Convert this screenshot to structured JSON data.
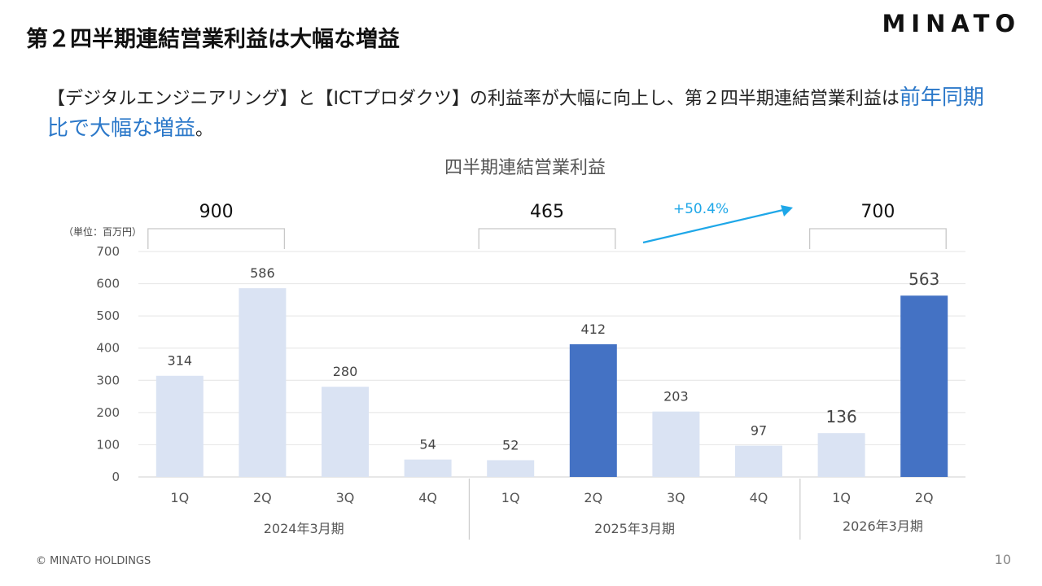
{
  "header": {
    "title": "第２四半期連結営業利益は大幅な増益",
    "logo": "MINATO"
  },
  "lead": {
    "text_before": "【デジタルエンジニアリング】と【ICTプロダクツ】の利益率が大幅に向上し、第２四半期連結営業利益は",
    "highlight": "前年同期比で大幅な増益",
    "text_after": "。"
  },
  "footer": {
    "copyright": "© MINATO HOLDINGS",
    "page_number": "10"
  },
  "colors": {
    "bar_light": "#dae3f3",
    "bar_highlight": "#4472c4",
    "growth_arrow": "#1ea7e8",
    "highlight_text": "#2b78c9"
  },
  "chart_data": {
    "type": "bar",
    "title": "四半期連結営業利益",
    "unit_label": "（単位：百万円）",
    "ylim": [
      0,
      700
    ],
    "yticks": [
      0,
      100,
      200,
      300,
      400,
      500,
      600,
      700
    ],
    "grid": true,
    "categories": [
      "1Q",
      "2Q",
      "3Q",
      "4Q",
      "1Q",
      "2Q",
      "3Q",
      "4Q",
      "1Q",
      "2Q"
    ],
    "values": [
      314,
      586,
      280,
      54,
      52,
      412,
      203,
      97,
      136,
      563
    ],
    "highlighted": [
      false,
      false,
      false,
      false,
      false,
      true,
      false,
      false,
      false,
      true
    ],
    "groups": [
      {
        "label": "2024年3月期",
        "start": 0,
        "end": 3
      },
      {
        "label": "2025年3月期",
        "start": 4,
        "end": 7
      },
      {
        "label": "2026年3月期",
        "start": 8,
        "end": 9
      }
    ],
    "half_year_totals": [
      {
        "value": "900",
        "start": 0,
        "end": 1
      },
      {
        "value": "465",
        "start": 4,
        "end": 5
      },
      {
        "value": "700",
        "start": 8,
        "end": 9
      }
    ],
    "growth_label": "+50.4%"
  }
}
